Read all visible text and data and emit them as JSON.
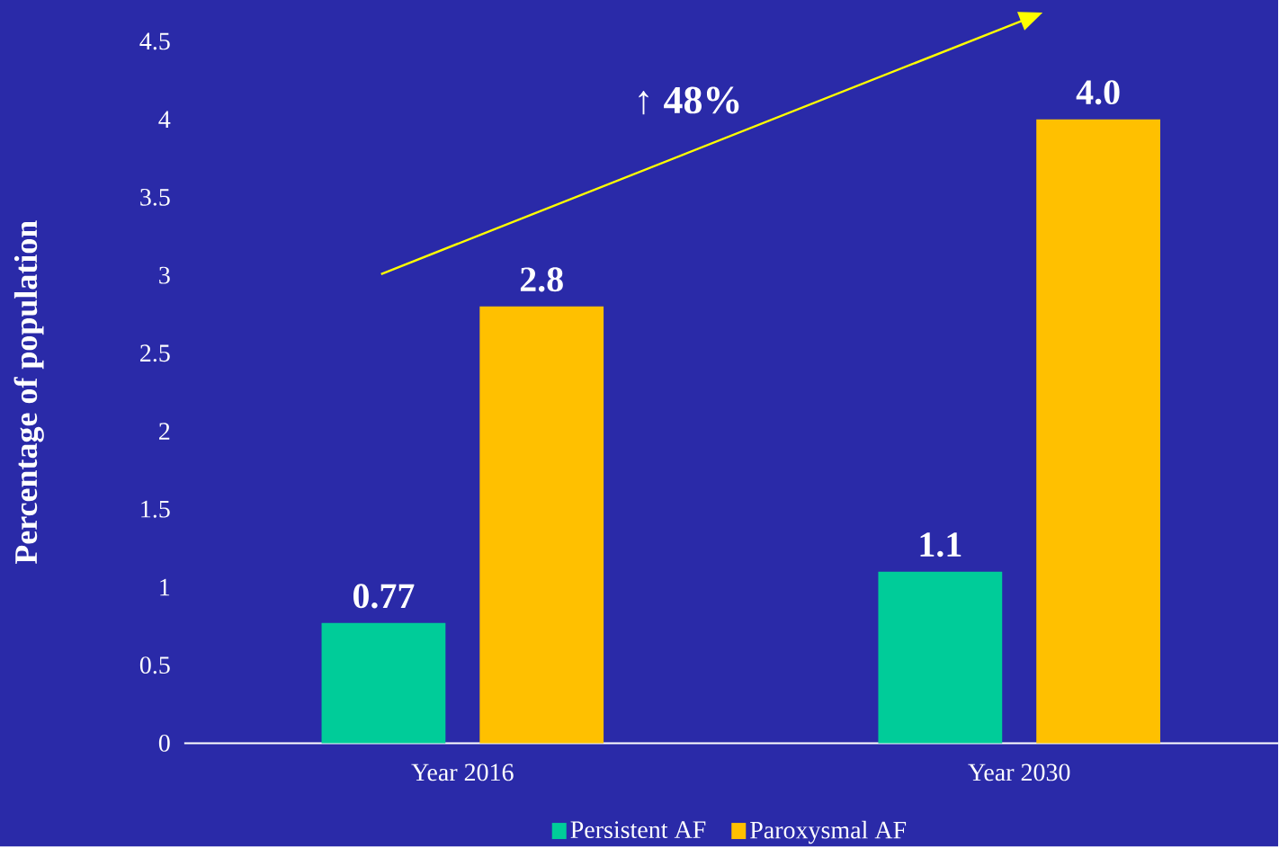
{
  "chart_data": {
    "type": "bar",
    "categories": [
      "Year 2016",
      "Year 2030"
    ],
    "series": [
      {
        "name": "Persistent AF",
        "color": "#00cc99",
        "values": [
          0.77,
          1.1
        ],
        "value_labels": [
          "0.77",
          "1.1"
        ]
      },
      {
        "name": "Paroxysmal AF",
        "color": "#ffc000",
        "values": [
          2.8,
          4.0
        ],
        "value_labels": [
          "2.8",
          "4.0"
        ]
      }
    ],
    "ylabel": "Percentage of population",
    "ylim": [
      0,
      4.5
    ],
    "yticks": [
      0,
      0.5,
      1,
      1.5,
      2,
      2.5,
      3,
      3.5,
      4,
      4.5
    ],
    "annotations": [
      "↑ 48%"
    ],
    "legend": "bottom",
    "grid": false
  }
}
